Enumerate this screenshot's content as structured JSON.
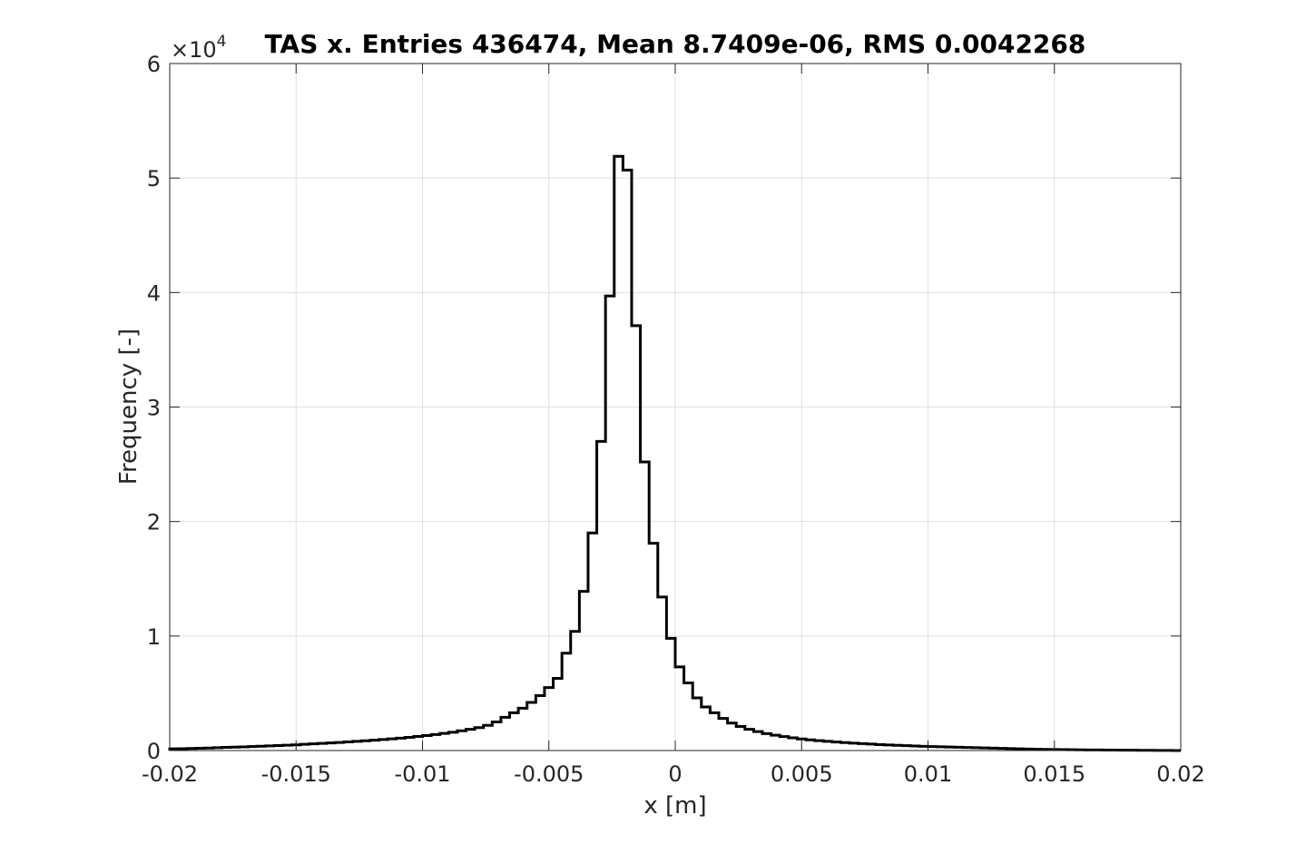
{
  "chart_data": {
    "type": "histogram",
    "title": "TAS x. Entries 436474, Mean 8.7409e-06, RMS 0.0042268",
    "xlabel": "x [m]",
    "ylabel": "Frequency [-]",
    "y_multiplier_base": "×10",
    "y_multiplier_exponent": "4",
    "xlim": [
      -0.02,
      0.02
    ],
    "ylim": [
      0,
      60000
    ],
    "x_ticks": [
      -0.02,
      -0.015,
      -0.01,
      -0.005,
      0,
      0.005,
      0.01,
      0.015,
      0.02
    ],
    "x_tick_labels": [
      "-0.02",
      "-0.015",
      "-0.01",
      "-0.005",
      "0",
      "0.005",
      "0.01",
      "0.015",
      "0.02"
    ],
    "y_ticks": [
      0,
      10000,
      20000,
      30000,
      40000,
      50000,
      60000
    ],
    "y_tick_labels": [
      "0",
      "1",
      "2",
      "3",
      "4",
      "5",
      "6"
    ],
    "grid": true,
    "series_color": "#000000",
    "bin_edges_start": -0.02,
    "bin_width": 0.0003333,
    "counts": [
      150,
      160,
      180,
      200,
      220,
      250,
      280,
      300,
      320,
      350,
      380,
      410,
      440,
      470,
      500,
      540,
      580,
      620,
      660,
      700,
      750,
      800,
      850,
      900,
      960,
      1020,
      1080,
      1150,
      1230,
      1310,
      1400,
      1500,
      1600,
      1720,
      1850,
      2000,
      2200,
      2500,
      2900,
      3300,
      3700,
      4200,
      4800,
      5500,
      6300,
      8500,
      10400,
      13900,
      19000,
      27000,
      39700,
      51900,
      50700,
      37100,
      25200,
      18100,
      13400,
      9800,
      7300,
      5900,
      4600,
      3800,
      3300,
      2800,
      2400,
      2100,
      1850,
      1650,
      1480,
      1340,
      1220,
      1110,
      1010,
      930,
      860,
      800,
      740,
      690,
      640,
      600,
      560,
      520,
      490,
      460,
      430,
      400,
      370,
      350,
      330,
      310,
      290,
      270,
      250,
      230,
      210,
      190,
      170,
      150,
      130,
      110,
      100,
      90,
      80,
      70,
      60,
      50,
      45,
      40,
      35,
      30,
      25,
      20,
      15,
      10,
      5,
      0
    ]
  }
}
